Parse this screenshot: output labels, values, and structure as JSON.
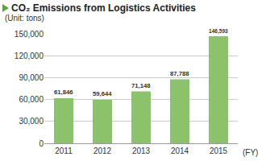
{
  "chart_data": {
    "type": "bar",
    "title": "CO₂ Emissions from Logistics Activities",
    "subtitle": "(Unit: tons)",
    "x_label": "(FY)",
    "categories": [
      "2011",
      "2012",
      "2013",
      "2014",
      "2015"
    ],
    "values": [
      61846,
      59644,
      71148,
      87788,
      146593
    ],
    "value_labels": [
      "61,846",
      "59,644",
      "71,148",
      "87,788",
      "146,593"
    ],
    "color": "#8cc26c",
    "ylim": [
      0,
      150000
    ],
    "yticks": [
      0,
      {
        "value": 30000,
        "label": "30,000"
      },
      {
        "value": 60000,
        "label": "60,000"
      },
      {
        "value": 90000,
        "label": "90,000"
      },
      {
        "value": 120000,
        "label": "120,000"
      },
      {
        "value": 150000,
        "label": "150,000"
      }
    ],
    "grid": true,
    "data_labels": true
  }
}
